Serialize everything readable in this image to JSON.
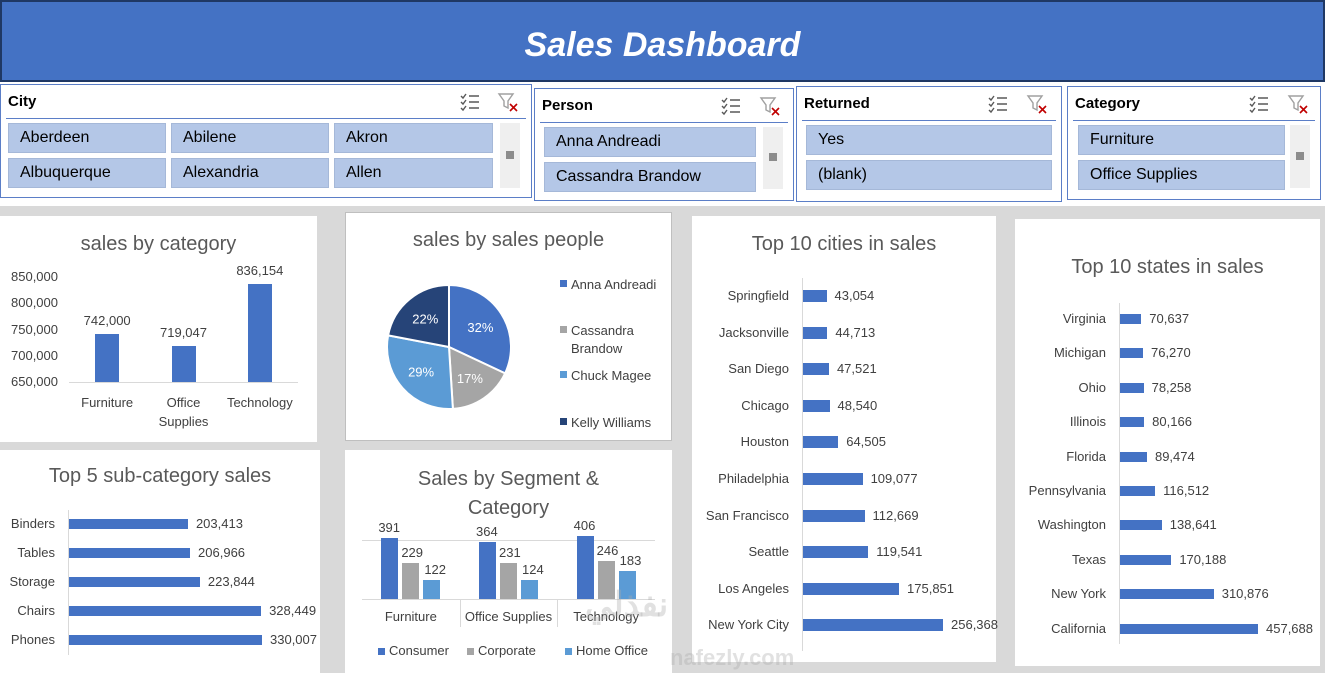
{
  "title": "Sales Dashboard",
  "colors": {
    "banner": "#4472c4",
    "bar": "#4472c4",
    "slicer_item": "#b4c7e7",
    "pie": [
      "#4472c4",
      "#a5a5a5",
      "#5b9bd5",
      "#264478"
    ],
    "segment": [
      "#4472c4",
      "#a5a5a5",
      "#5b9bd5"
    ]
  },
  "slicers": {
    "city": {
      "title": "City",
      "items": [
        "Aberdeen",
        "Abilene",
        "Akron",
        "Albuquerque",
        "Alexandria",
        "Allen"
      ]
    },
    "person": {
      "title": "Person",
      "items": [
        "Anna Andreadi",
        "Cassandra Brandow"
      ]
    },
    "returned": {
      "title": "Returned",
      "items": [
        "Yes",
        "(blank)"
      ]
    },
    "category": {
      "title": "Category",
      "items": [
        "Furniture",
        "Office Supplies"
      ]
    },
    "icons": [
      "multi-select-icon",
      "clear-filter-icon"
    ]
  },
  "chart_data": [
    {
      "id": "cat",
      "type": "bar",
      "title": "sales by category",
      "categories": [
        "Furniture",
        "Office Supplies",
        "Technology"
      ],
      "values": [
        742000,
        719047,
        836154
      ],
      "value_labels": [
        "742,000",
        "719,047",
        "836,154"
      ],
      "ylim": [
        650000,
        850000
      ],
      "yticks": [
        "850,000",
        "800,000",
        "750,000",
        "700,000",
        "650,000"
      ]
    },
    {
      "id": "people",
      "type": "pie",
      "title": "sales by sales people",
      "legend": [
        "Anna Andreadi",
        "Cassandra Brandow",
        "Chuck Magee",
        "Kelly Williams"
      ],
      "values": [
        32,
        17,
        29,
        22
      ],
      "value_labels": [
        "32%",
        "17%",
        "29%",
        "22%"
      ],
      "legend_position": "right"
    },
    {
      "id": "subcat",
      "type": "bar",
      "orientation": "horizontal",
      "title": "Top 5 sub-category sales",
      "categories": [
        "Binders",
        "Tables",
        "Storage",
        "Chairs",
        "Phones"
      ],
      "values": [
        203413,
        206966,
        223844,
        328449,
        330007
      ],
      "value_labels": [
        "203,413",
        "206,966",
        "223,844",
        "328,449",
        "330,007"
      ]
    },
    {
      "id": "segment",
      "type": "bar",
      "title": "Sales by Segment & Category",
      "categories": [
        "Furniture",
        "Office Supplies",
        "Technology"
      ],
      "series": [
        {
          "name": "Consumer",
          "values": [
            391,
            364,
            406
          ]
        },
        {
          "name": "Corporate",
          "values": [
            229,
            231,
            246
          ]
        },
        {
          "name": "Home Office",
          "values": [
            122,
            124,
            183
          ]
        }
      ],
      "legend_position": "bottom"
    },
    {
      "id": "cities",
      "type": "bar",
      "orientation": "horizontal",
      "title": "Top 10 cities in sales",
      "categories": [
        "Springfield",
        "Jacksonville",
        "San Diego",
        "Chicago",
        "Houston",
        "Philadelphia",
        "San Francisco",
        "Seattle",
        "Los Angeles",
        "New York City"
      ],
      "values": [
        43054,
        44713,
        47521,
        48540,
        64505,
        109077,
        112669,
        119541,
        175851,
        256368
      ],
      "value_labels": [
        "43,054",
        "44,713",
        "47,521",
        "48,540",
        "64,505",
        "109,077",
        "112,669",
        "119,541",
        "175,851",
        "256,368"
      ]
    },
    {
      "id": "states",
      "type": "bar",
      "orientation": "horizontal",
      "title": "Top 10 states in sales",
      "categories": [
        "Virginia",
        "Michigan",
        "Ohio",
        "Illinois",
        "Florida",
        "Pennsylvania",
        "Washington",
        "Texas",
        "New York",
        "California"
      ],
      "values": [
        70637,
        76270,
        78258,
        80166,
        89474,
        116512,
        138641,
        170188,
        310876,
        457688
      ],
      "value_labels": [
        "70,637",
        "76,270",
        "78,258",
        "80,166",
        "89,474",
        "116,512",
        "138,641",
        "170,188",
        "310,876",
        "457,688"
      ]
    }
  ],
  "watermark": {
    "arabic": "نفذلي",
    "latin": "nafezly.com"
  }
}
